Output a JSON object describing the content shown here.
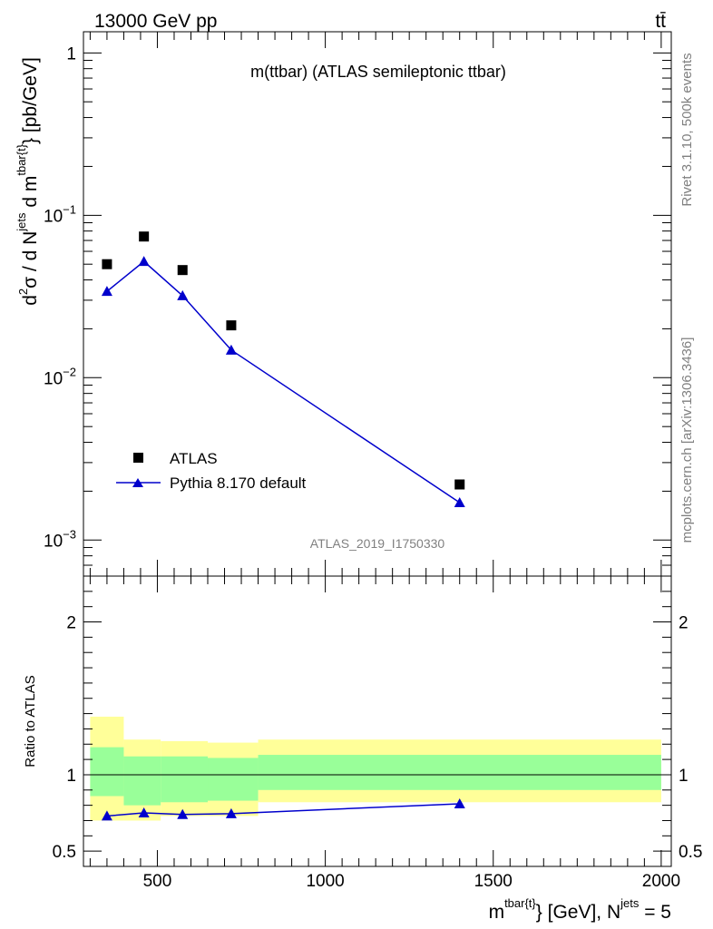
{
  "header": {
    "left": "13000 GeV pp",
    "right": "tt̄"
  },
  "side": {
    "rivet": "Rivet 3.1.10,  500k events",
    "mcplots": "mcplots.cern.ch [arXiv:1306.3436]"
  },
  "colors": {
    "data": "#000000",
    "mc": "#0000cc",
    "band_inner": "#99ff99",
    "band_outer": "#ffff99"
  },
  "chart_data": [
    {
      "type": "scatter",
      "panel": "main",
      "title": "m(ttbar) (ATLAS semileptonic ttbar)",
      "analysis_label": "ATLAS_2019_I1750330",
      "ylabel": "d²σ / d N^jets d m^tbar{t} [pb/GeV]",
      "yscale": "log",
      "ylim": [
        0.0006,
        1.35
      ],
      "xlim": [
        280,
        2030
      ],
      "ytick_labels": [
        "1",
        "10⁻¹",
        "10⁻²",
        "10⁻³"
      ],
      "legend_position": "bottom-left",
      "series": [
        {
          "name": "ATLAS",
          "marker": "square",
          "x": [
            350,
            460,
            575,
            720,
            1400
          ],
          "y": [
            0.05,
            0.074,
            0.046,
            0.021,
            0.0022
          ]
        },
        {
          "name": "Pythia 8.170 default",
          "marker": "triangle",
          "line": true,
          "x": [
            350,
            460,
            575,
            720,
            1400
          ],
          "y": [
            0.034,
            0.052,
            0.032,
            0.0148,
            0.0017
          ]
        }
      ]
    },
    {
      "type": "line",
      "panel": "ratio",
      "ylabel": "Ratio to ATLAS",
      "xlabel_main": "m",
      "xlabel_sup": "tbar{t}",
      "xlabel_mid": "} [GeV], N",
      "xlabel_sup2": "jets",
      "xlabel_end": " = 5",
      "xlim": [
        280,
        2030
      ],
      "ylim": [
        0.4,
        2.3
      ],
      "xtick_labels": [
        "500",
        "1000",
        "1500",
        "2000"
      ],
      "ytick_labels": [
        "0.5",
        "1",
        "2"
      ],
      "bins": [
        {
          "lo": 300,
          "hi": 400,
          "inner": [
            0.86,
            1.18
          ],
          "outer": [
            0.7,
            1.38
          ]
        },
        {
          "lo": 400,
          "hi": 510,
          "inner": [
            0.8,
            1.12
          ],
          "outer": [
            0.7,
            1.23
          ]
        },
        {
          "lo": 510,
          "hi": 650,
          "inner": [
            0.82,
            1.12
          ],
          "outer": [
            0.73,
            1.22
          ]
        },
        {
          "lo": 650,
          "hi": 800,
          "inner": [
            0.83,
            1.11
          ],
          "outer": [
            0.73,
            1.21
          ]
        },
        {
          "lo": 800,
          "hi": 2000,
          "inner": [
            0.9,
            1.13
          ],
          "outer": [
            0.82,
            1.23
          ]
        }
      ],
      "series": [
        {
          "name": "Pythia 8.170 default",
          "x": [
            350,
            460,
            575,
            720,
            1400
          ],
          "y": [
            0.73,
            0.75,
            0.74,
            0.745,
            0.81
          ]
        }
      ]
    }
  ]
}
